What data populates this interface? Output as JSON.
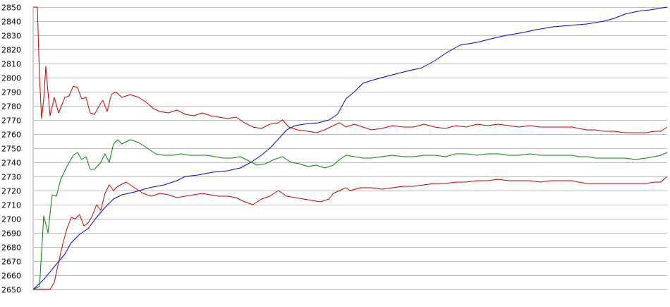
{
  "chart_data": {
    "type": "line",
    "title": "",
    "xlabel": "",
    "ylabel": "",
    "ylim": [
      2650,
      2850
    ],
    "yticks": [
      2650,
      2660,
      2670,
      2680,
      2690,
      2700,
      2710,
      2720,
      2730,
      2740,
      2750,
      2760,
      2770,
      2780,
      2790,
      2800,
      2810,
      2820,
      2830,
      2840,
      2850
    ],
    "xlim": [
      0,
      300
    ],
    "grid": true,
    "legend": "none",
    "series": [
      {
        "color": "#0000c0",
        "points": [
          [
            0,
            2650
          ],
          [
            5,
            2657
          ],
          [
            10,
            2666
          ],
          [
            15,
            2675
          ],
          [
            18,
            2683
          ],
          [
            22,
            2689
          ],
          [
            26,
            2693
          ],
          [
            30,
            2701
          ],
          [
            34,
            2708
          ],
          [
            38,
            2714
          ],
          [
            42,
            2717
          ],
          [
            48,
            2719
          ],
          [
            55,
            2722
          ],
          [
            62,
            2724
          ],
          [
            68,
            2727
          ],
          [
            72,
            2730
          ],
          [
            78,
            2731
          ],
          [
            85,
            2733
          ],
          [
            92,
            2734
          ],
          [
            98,
            2736
          ],
          [
            103,
            2740
          ],
          [
            108,
            2745
          ],
          [
            112,
            2750
          ],
          [
            117,
            2758
          ],
          [
            120,
            2763
          ],
          [
            124,
            2766
          ],
          [
            128,
            2767
          ],
          [
            135,
            2768
          ],
          [
            140,
            2770
          ],
          [
            144,
            2774
          ],
          [
            148,
            2785
          ],
          [
            152,
            2790
          ],
          [
            156,
            2796
          ],
          [
            160,
            2798
          ],
          [
            165,
            2800
          ],
          [
            170,
            2802
          ],
          [
            178,
            2805
          ],
          [
            184,
            2807
          ],
          [
            190,
            2812
          ],
          [
            196,
            2818
          ],
          [
            202,
            2823
          ],
          [
            210,
            2825
          ],
          [
            218,
            2828
          ],
          [
            224,
            2830
          ],
          [
            232,
            2832
          ],
          [
            238,
            2834
          ],
          [
            246,
            2836
          ],
          [
            254,
            2837
          ],
          [
            262,
            2838
          ],
          [
            270,
            2840
          ],
          [
            275,
            2842
          ],
          [
            280,
            2845
          ],
          [
            286,
            2847
          ],
          [
            292,
            2848
          ],
          [
            300,
            2850
          ]
        ]
      },
      {
        "color": "#c00000",
        "points": [
          [
            0,
            2850
          ],
          [
            2,
            2850
          ],
          [
            3,
            2800
          ],
          [
            4,
            2771
          ],
          [
            5,
            2785
          ],
          [
            6,
            2808
          ],
          [
            7,
            2790
          ],
          [
            8,
            2773
          ],
          [
            10,
            2786
          ],
          [
            12,
            2775
          ],
          [
            15,
            2786
          ],
          [
            17,
            2787
          ],
          [
            19,
            2794
          ],
          [
            21,
            2793
          ],
          [
            23,
            2785
          ],
          [
            25,
            2786
          ],
          [
            27,
            2775
          ],
          [
            29,
            2774
          ],
          [
            32,
            2782
          ],
          [
            33,
            2784
          ],
          [
            35,
            2776
          ],
          [
            37,
            2788
          ],
          [
            39,
            2790
          ],
          [
            42,
            2786
          ],
          [
            46,
            2788
          ],
          [
            50,
            2786
          ],
          [
            54,
            2782
          ],
          [
            57,
            2778
          ],
          [
            60,
            2776
          ],
          [
            64,
            2775
          ],
          [
            68,
            2777
          ],
          [
            72,
            2774
          ],
          [
            76,
            2773
          ],
          [
            80,
            2775
          ],
          [
            84,
            2773
          ],
          [
            88,
            2772
          ],
          [
            92,
            2771
          ],
          [
            96,
            2772
          ],
          [
            100,
            2768
          ],
          [
            104,
            2765
          ],
          [
            108,
            2764
          ],
          [
            112,
            2767
          ],
          [
            116,
            2768
          ],
          [
            118,
            2770
          ],
          [
            121,
            2765
          ],
          [
            125,
            2763
          ],
          [
            130,
            2762
          ],
          [
            134,
            2761
          ],
          [
            138,
            2763
          ],
          [
            142,
            2766
          ],
          [
            145,
            2768
          ],
          [
            148,
            2765
          ],
          [
            152,
            2767
          ],
          [
            156,
            2765
          ],
          [
            160,
            2763
          ],
          [
            165,
            2764
          ],
          [
            170,
            2766
          ],
          [
            175,
            2765
          ],
          [
            180,
            2765
          ],
          [
            185,
            2767
          ],
          [
            190,
            2765
          ],
          [
            195,
            2764
          ],
          [
            200,
            2766
          ],
          [
            205,
            2765
          ],
          [
            210,
            2767
          ],
          [
            215,
            2766
          ],
          [
            220,
            2767
          ],
          [
            225,
            2766
          ],
          [
            230,
            2765
          ],
          [
            235,
            2766
          ],
          [
            240,
            2765
          ],
          [
            245,
            2765
          ],
          [
            250,
            2765
          ],
          [
            255,
            2765
          ],
          [
            258,
            2764
          ],
          [
            262,
            2763
          ],
          [
            266,
            2763
          ],
          [
            270,
            2762
          ],
          [
            275,
            2762
          ],
          [
            280,
            2761
          ],
          [
            285,
            2761
          ],
          [
            290,
            2761
          ],
          [
            294,
            2762
          ],
          [
            297,
            2762
          ],
          [
            300,
            2765
          ]
        ]
      },
      {
        "color": "#008000",
        "points": [
          [
            0,
            2650
          ],
          [
            3,
            2652
          ],
          [
            5,
            2702
          ],
          [
            7,
            2690
          ],
          [
            9,
            2717
          ],
          [
            11,
            2716
          ],
          [
            13,
            2728
          ],
          [
            16,
            2737
          ],
          [
            19,
            2745
          ],
          [
            21,
            2747
          ],
          [
            23,
            2742
          ],
          [
            25,
            2744
          ],
          [
            27,
            2735
          ],
          [
            29,
            2735
          ],
          [
            32,
            2740
          ],
          [
            34,
            2746
          ],
          [
            36,
            2740
          ],
          [
            38,
            2753
          ],
          [
            40,
            2756
          ],
          [
            42,
            2753
          ],
          [
            46,
            2756
          ],
          [
            50,
            2754
          ],
          [
            54,
            2750
          ],
          [
            58,
            2746
          ],
          [
            62,
            2745
          ],
          [
            66,
            2745
          ],
          [
            70,
            2746
          ],
          [
            74,
            2745
          ],
          [
            78,
            2745
          ],
          [
            82,
            2745
          ],
          [
            86,
            2744
          ],
          [
            90,
            2743
          ],
          [
            94,
            2743
          ],
          [
            98,
            2744
          ],
          [
            102,
            2741
          ],
          [
            106,
            2738
          ],
          [
            110,
            2739
          ],
          [
            114,
            2742
          ],
          [
            118,
            2744
          ],
          [
            122,
            2740
          ],
          [
            126,
            2739
          ],
          [
            130,
            2737
          ],
          [
            134,
            2738
          ],
          [
            138,
            2736
          ],
          [
            142,
            2738
          ],
          [
            145,
            2742
          ],
          [
            148,
            2745
          ],
          [
            152,
            2744
          ],
          [
            156,
            2743
          ],
          [
            160,
            2743
          ],
          [
            165,
            2744
          ],
          [
            170,
            2745
          ],
          [
            175,
            2744
          ],
          [
            180,
            2744
          ],
          [
            185,
            2745
          ],
          [
            190,
            2745
          ],
          [
            195,
            2744
          ],
          [
            200,
            2746
          ],
          [
            205,
            2746
          ],
          [
            210,
            2745
          ],
          [
            215,
            2746
          ],
          [
            220,
            2746
          ],
          [
            225,
            2745
          ],
          [
            230,
            2745
          ],
          [
            235,
            2746
          ],
          [
            240,
            2745
          ],
          [
            245,
            2745
          ],
          [
            250,
            2745
          ],
          [
            255,
            2745
          ],
          [
            258,
            2744
          ],
          [
            262,
            2744
          ],
          [
            266,
            2743
          ],
          [
            270,
            2743
          ],
          [
            275,
            2743
          ],
          [
            280,
            2743
          ],
          [
            285,
            2742
          ],
          [
            290,
            2743
          ],
          [
            294,
            2744
          ],
          [
            297,
            2745
          ],
          [
            300,
            2747
          ]
        ]
      },
      {
        "color": "#c00000",
        "points": [
          [
            0,
            2650
          ],
          [
            5,
            2650
          ],
          [
            8,
            2650
          ],
          [
            10,
            2655
          ],
          [
            12,
            2669
          ],
          [
            14,
            2682
          ],
          [
            16,
            2693
          ],
          [
            18,
            2701
          ],
          [
            20,
            2700
          ],
          [
            22,
            2703
          ],
          [
            24,
            2695
          ],
          [
            26,
            2697
          ],
          [
            28,
            2702
          ],
          [
            30,
            2710
          ],
          [
            32,
            2706
          ],
          [
            34,
            2718
          ],
          [
            36,
            2724
          ],
          [
            38,
            2720
          ],
          [
            40,
            2723
          ],
          [
            44,
            2726
          ],
          [
            48,
            2722
          ],
          [
            52,
            2718
          ],
          [
            56,
            2716
          ],
          [
            60,
            2718
          ],
          [
            64,
            2717
          ],
          [
            68,
            2715
          ],
          [
            72,
            2716
          ],
          [
            76,
            2717
          ],
          [
            80,
            2718
          ],
          [
            84,
            2717
          ],
          [
            88,
            2716
          ],
          [
            92,
            2716
          ],
          [
            96,
            2715
          ],
          [
            100,
            2712
          ],
          [
            104,
            2710
          ],
          [
            108,
            2714
          ],
          [
            112,
            2716
          ],
          [
            116,
            2720
          ],
          [
            120,
            2716
          ],
          [
            124,
            2715
          ],
          [
            128,
            2714
          ],
          [
            132,
            2713
          ],
          [
            136,
            2712
          ],
          [
            140,
            2714
          ],
          [
            142,
            2718
          ],
          [
            145,
            2720
          ],
          [
            148,
            2722
          ],
          [
            150,
            2720
          ],
          [
            155,
            2722
          ],
          [
            160,
            2722
          ],
          [
            165,
            2721
          ],
          [
            170,
            2722
          ],
          [
            175,
            2723
          ],
          [
            180,
            2723
          ],
          [
            185,
            2724
          ],
          [
            190,
            2725
          ],
          [
            195,
            2725
          ],
          [
            200,
            2726
          ],
          [
            205,
            2726
          ],
          [
            210,
            2727
          ],
          [
            215,
            2727
          ],
          [
            220,
            2728
          ],
          [
            225,
            2727
          ],
          [
            230,
            2727
          ],
          [
            235,
            2727
          ],
          [
            240,
            2726
          ],
          [
            245,
            2727
          ],
          [
            250,
            2727
          ],
          [
            255,
            2727
          ],
          [
            258,
            2726
          ],
          [
            262,
            2725
          ],
          [
            266,
            2725
          ],
          [
            270,
            2725
          ],
          [
            275,
            2725
          ],
          [
            280,
            2725
          ],
          [
            285,
            2725
          ],
          [
            290,
            2725
          ],
          [
            294,
            2726
          ],
          [
            297,
            2726
          ],
          [
            300,
            2730
          ]
        ]
      }
    ]
  }
}
